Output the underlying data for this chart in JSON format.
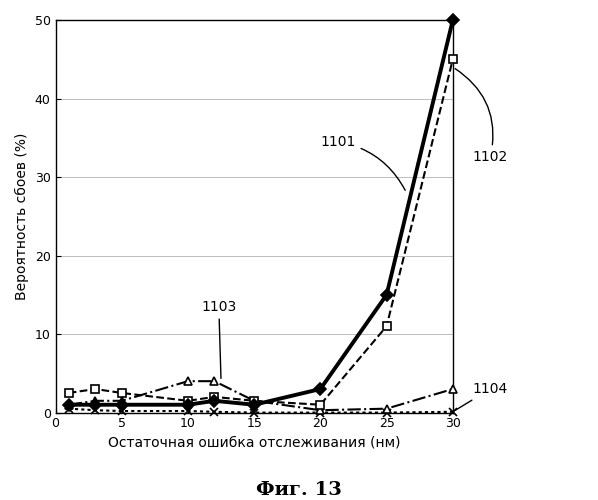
{
  "series": {
    "1101": {
      "x": [
        1,
        3,
        5,
        10,
        12,
        15,
        20,
        25,
        30
      ],
      "y": [
        1.0,
        1.0,
        1.0,
        1.0,
        1.5,
        1.0,
        3.0,
        15.0,
        50.0
      ],
      "linestyle": "solid",
      "linewidth": 2.8,
      "color": "black",
      "marker": "D",
      "markersize": 6,
      "markerfacecolor": "black",
      "markeredgecolor": "black",
      "zorder": 5
    },
    "1102": {
      "x": [
        1,
        3,
        5,
        10,
        12,
        15,
        20,
        25,
        30
      ],
      "y": [
        2.5,
        3.0,
        2.5,
        1.5,
        2.0,
        1.5,
        1.0,
        11.0,
        45.0
      ],
      "linestyle": "--",
      "linewidth": 1.5,
      "color": "black",
      "marker": "s",
      "markersize": 6,
      "markerfacecolor": "white",
      "markeredgecolor": "black",
      "zorder": 4
    },
    "1103": {
      "x": [
        1,
        3,
        5,
        10,
        12,
        15,
        20,
        25,
        30
      ],
      "y": [
        1.0,
        1.5,
        1.5,
        4.0,
        4.0,
        1.5,
        0.3,
        0.5,
        3.0
      ],
      "linestyle": "-.",
      "linewidth": 1.5,
      "color": "black",
      "marker": "^",
      "markersize": 6,
      "markerfacecolor": "white",
      "markeredgecolor": "black",
      "zorder": 3
    },
    "1104": {
      "x": [
        1,
        3,
        5,
        10,
        12,
        15,
        20,
        25,
        30
      ],
      "y": [
        0.5,
        0.3,
        0.2,
        0.2,
        0.1,
        0.0,
        0.0,
        0.0,
        0.1
      ],
      "linestyle": "dotted",
      "linewidth": 1.5,
      "color": "black",
      "marker": "x",
      "markersize": 6,
      "markerfacecolor": "black",
      "markeredgecolor": "black",
      "zorder": 2
    }
  },
  "xlim": [
    0,
    30
  ],
  "ylim": [
    0,
    50
  ],
  "xticks": [
    0,
    5,
    10,
    15,
    20,
    25,
    30
  ],
  "yticks": [
    0,
    10,
    20,
    30,
    40,
    50
  ],
  "xlabel": "Остаточная ошибка отслеживания (нм)",
  "ylabel": "Вероятность сбоев (%)",
  "figure_title": "Фиг. 13",
  "background_color": "white"
}
